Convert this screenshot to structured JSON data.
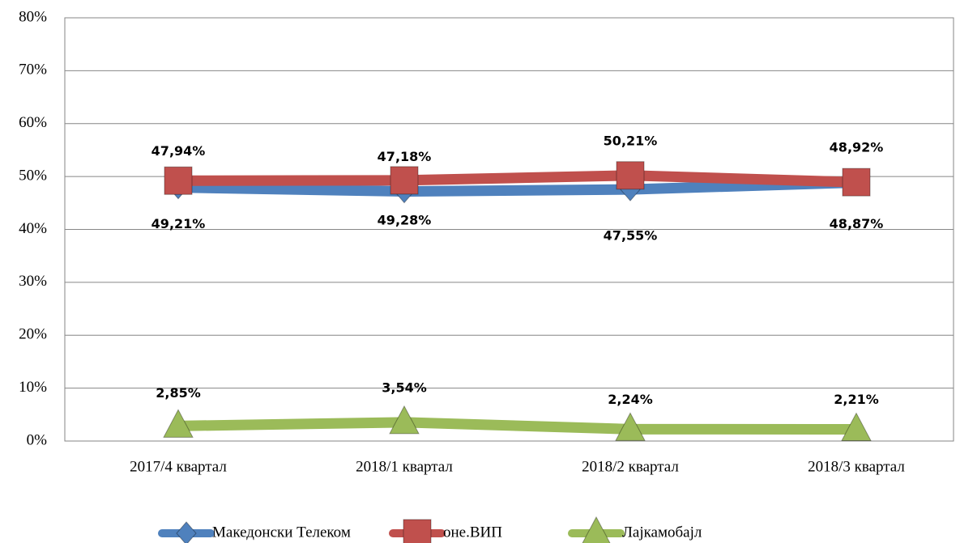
{
  "chart_data": {
    "type": "line",
    "categories": [
      "2017/4 квартал",
      "2018/1 квартал",
      "2018/2 квартал",
      "2018/3 квартал"
    ],
    "series": [
      {
        "name": "Македонски Телеком",
        "color": "#4f81bd",
        "values": [
          47.94,
          47.18,
          47.55,
          48.87
        ],
        "value_labels": [
          "47,94%",
          "47,18%",
          "47,55%",
          "48,87%"
        ]
      },
      {
        "name": "оне.ВИП",
        "color": "#c0504d",
        "values": [
          49.21,
          49.28,
          50.21,
          48.92
        ],
        "value_labels": [
          "49,21%",
          "49,28%",
          "50,21%",
          "48,92%"
        ]
      },
      {
        "name": "Лајкамобајл",
        "color": "#9bbb59",
        "values": [
          2.85,
          3.54,
          2.24,
          2.21
        ],
        "value_labels": [
          "2,85%",
          "3,54%",
          "2,24%",
          "2,21%"
        ]
      }
    ],
    "ylim": [
      0,
      80
    ],
    "yticks": [
      {
        "value": 0,
        "label": "0%"
      },
      {
        "value": 10,
        "label": "10%"
      },
      {
        "value": 20,
        "label": "20%"
      },
      {
        "value": 30,
        "label": "30%"
      },
      {
        "value": 40,
        "label": "40%"
      },
      {
        "value": 50,
        "label": "50%"
      },
      {
        "value": 60,
        "label": "60%"
      },
      {
        "value": 70,
        "label": "70%"
      },
      {
        "value": 80,
        "label": "80%"
      }
    ],
    "grid": true,
    "legend": "bottom"
  }
}
